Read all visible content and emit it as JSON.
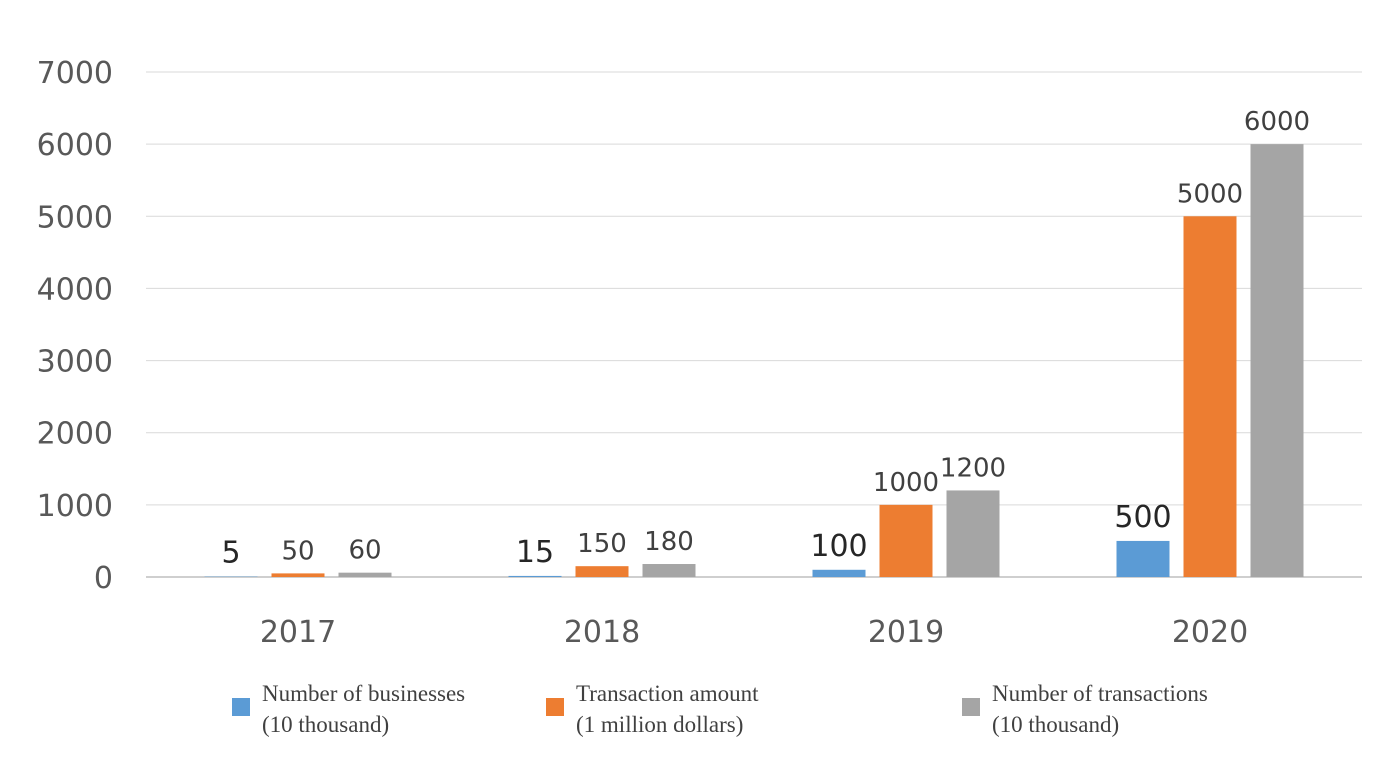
{
  "chart_data": {
    "type": "bar",
    "categories": [
      "2017",
      "2018",
      "2019",
      "2020"
    ],
    "series": [
      {
        "name": [
          "Number of businesses",
          "(10 thousand)"
        ],
        "color": "#5B9BD5",
        "values": [
          5,
          15,
          100,
          500
        ]
      },
      {
        "name": [
          "Transaction amount",
          "(1 million dollars)"
        ],
        "color": "#ED7D31",
        "values": [
          50,
          150,
          1000,
          5000
        ]
      },
      {
        "name": [
          "Number of transactions",
          "(10 thousand)"
        ],
        "color": "#A5A5A5",
        "values": [
          60,
          180,
          1200,
          6000
        ]
      }
    ],
    "yticks": [
      "0",
      "1000",
      "2000",
      "3000",
      "4000",
      "5000",
      "6000",
      "7000"
    ],
    "ylim": [
      0,
      7000
    ],
    "grid": true,
    "legend_position": "bottom"
  }
}
